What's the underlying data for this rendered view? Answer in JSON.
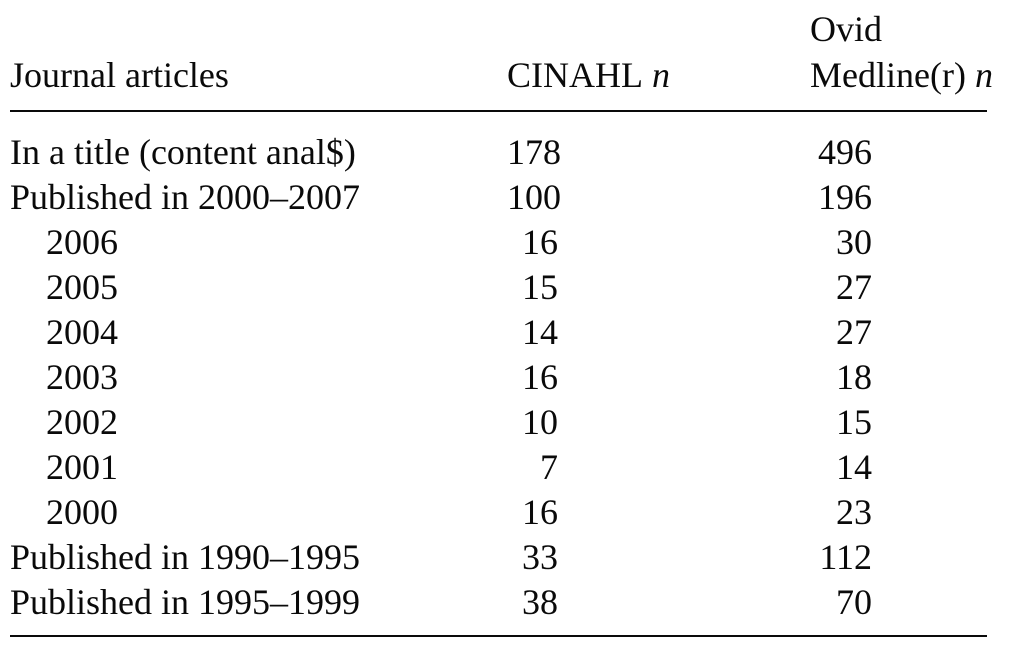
{
  "page": {
    "background_color": "#ffffff",
    "text_color": "#0a0a0a",
    "rule_color": "#0a0a0a"
  },
  "table": {
    "header": {
      "col1": "Journal articles",
      "col2_name": "CINAHL",
      "col2_n": "n",
      "col3_line1": "Ovid",
      "col3_line2": "Medline(r)",
      "col3_n": "n"
    },
    "rows": [
      {
        "label": "In a title (content anal$)",
        "indent": false,
        "cinahl": "178",
        "medline": "496"
      },
      {
        "label": "Published in 2000–2007",
        "indent": false,
        "cinahl": "100",
        "medline": "196"
      },
      {
        "label": "2006",
        "indent": true,
        "cinahl": "16",
        "medline": "30"
      },
      {
        "label": "2005",
        "indent": true,
        "cinahl": "15",
        "medline": "27"
      },
      {
        "label": "2004",
        "indent": true,
        "cinahl": "14",
        "medline": "27"
      },
      {
        "label": "2003",
        "indent": true,
        "cinahl": "16",
        "medline": "18"
      },
      {
        "label": "2002",
        "indent": true,
        "cinahl": "10",
        "medline": "15"
      },
      {
        "label": "2001",
        "indent": true,
        "cinahl": "7",
        "medline": "14"
      },
      {
        "label": "2000",
        "indent": true,
        "cinahl": "16",
        "medline": "23"
      },
      {
        "label": "Published in 1990–1995",
        "indent": false,
        "cinahl": "33",
        "medline": "112"
      },
      {
        "label": "Published in 1995–1999",
        "indent": false,
        "cinahl": "38",
        "medline": "70"
      }
    ]
  }
}
